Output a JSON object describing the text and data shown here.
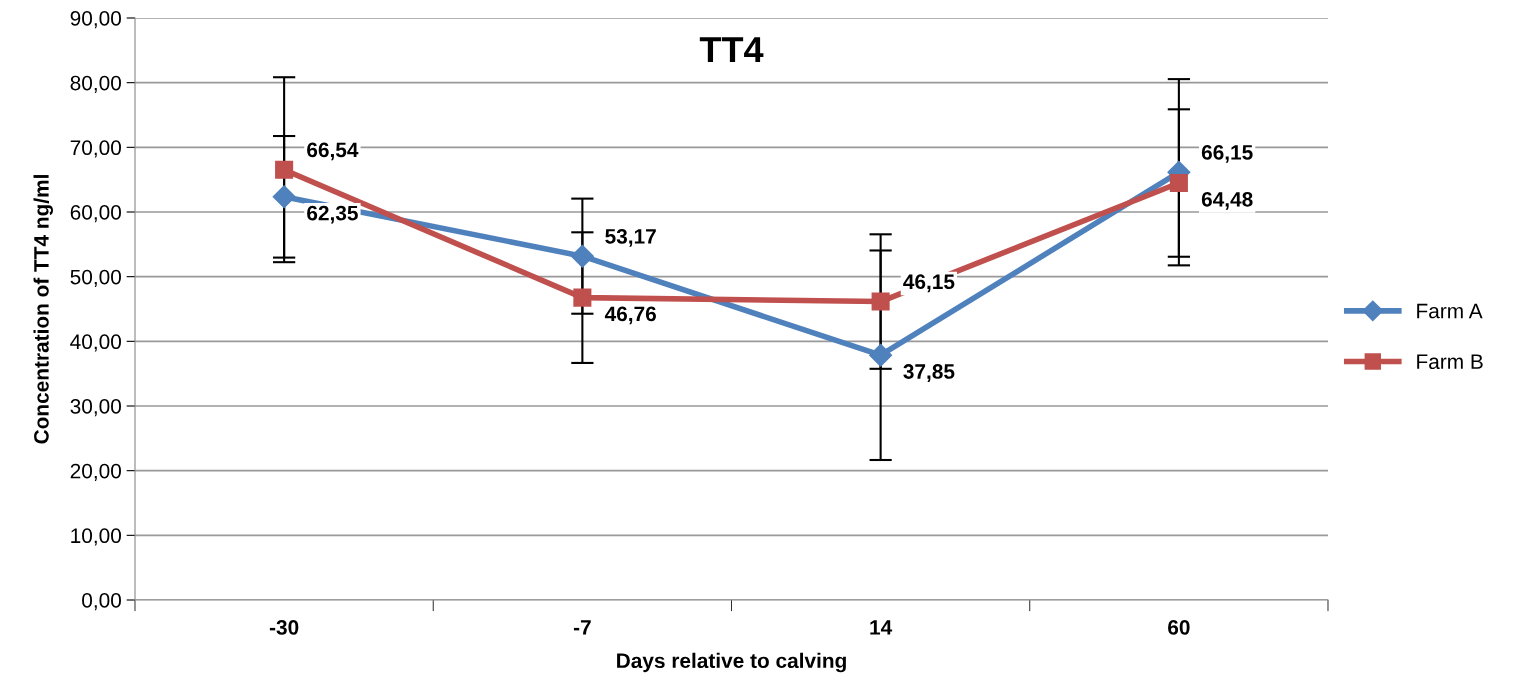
{
  "chart_data": {
    "type": "line",
    "title": "TT4",
    "xlabel": "Days relative to calving",
    "ylabel": "Concentration of TT4 ng/ml",
    "categories": [
      "-30",
      "-7",
      "14",
      "60"
    ],
    "series": [
      {
        "name": "Farm A",
        "color": "#4f81bd",
        "marker": "diamond",
        "values": [
          62.35,
          53.17,
          37.85,
          66.15
        ],
        "value_labels": [
          "62,35",
          "53,17",
          "37,85",
          "66,15"
        ],
        "errors": [
          9.4,
          8.9,
          16.2,
          14.4
        ]
      },
      {
        "name": "Farm B",
        "color": "#c0504d",
        "marker": "square",
        "values": [
          66.54,
          46.76,
          46.15,
          64.48
        ],
        "value_labels": [
          "66,54",
          "46,76",
          "46,15",
          "64,48"
        ],
        "errors": [
          14.3,
          10.1,
          10.4,
          11.4
        ]
      }
    ],
    "ylim": [
      0,
      90
    ],
    "yticks": [
      {
        "value": 0,
        "label": "0,00"
      },
      {
        "value": 10,
        "label": "10,00"
      },
      {
        "value": 20,
        "label": "20,00"
      },
      {
        "value": 30,
        "label": "30,00"
      },
      {
        "value": 40,
        "label": "40,00"
      },
      {
        "value": 50,
        "label": "50,00"
      },
      {
        "value": 60,
        "label": "60,00"
      },
      {
        "value": 70,
        "label": "70,00"
      },
      {
        "value": 80,
        "label": "80,00"
      },
      {
        "value": 90,
        "label": "90,00"
      }
    ],
    "grid": "y",
    "legend": "right",
    "line_style": "solid"
  }
}
